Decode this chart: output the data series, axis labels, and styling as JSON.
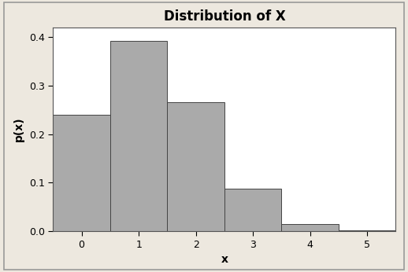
{
  "title": "Distribution of X",
  "xlabel": "x",
  "ylabel": "p(x)",
  "categories": [
    0,
    1,
    2,
    3,
    4,
    5
  ],
  "values": [
    0.239,
    0.392,
    0.265,
    0.088,
    0.015,
    0.001
  ],
  "bar_color": "#aaaaaa",
  "bar_edge_color": "#444444",
  "ylim": [
    0,
    0.42
  ],
  "yticks": [
    0.0,
    0.1,
    0.2,
    0.3,
    0.4
  ],
  "xticks": [
    0,
    1,
    2,
    3,
    4,
    5
  ],
  "background_outer": "#ede8df",
  "background_plot": "#ffffff",
  "title_fontsize": 12,
  "axis_label_fontsize": 10,
  "tick_fontsize": 9,
  "bar_width": 1.0,
  "border_color": "#999999",
  "xlim": [
    -0.5,
    5.5
  ]
}
